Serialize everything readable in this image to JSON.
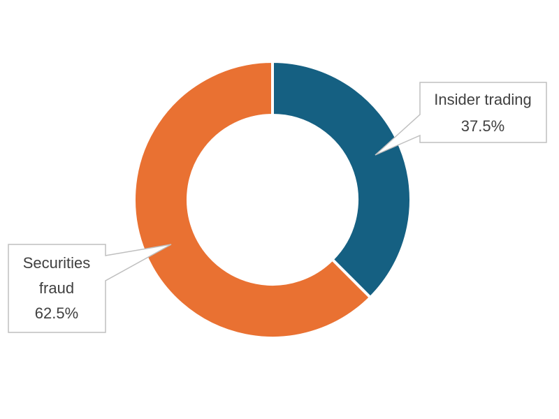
{
  "chart_data": {
    "type": "pie",
    "variant": "donut",
    "slices": [
      {
        "name": "Insider trading",
        "value": 37.5,
        "label": "37.5%",
        "color": "#156082"
      },
      {
        "name": "Securities fraud",
        "value": 62.5,
        "label": "62.5%",
        "color": "#E97132"
      }
    ],
    "start_angle_deg": 0,
    "direction": "clockwise",
    "legend": "none",
    "data_labels": "callouts"
  }
}
